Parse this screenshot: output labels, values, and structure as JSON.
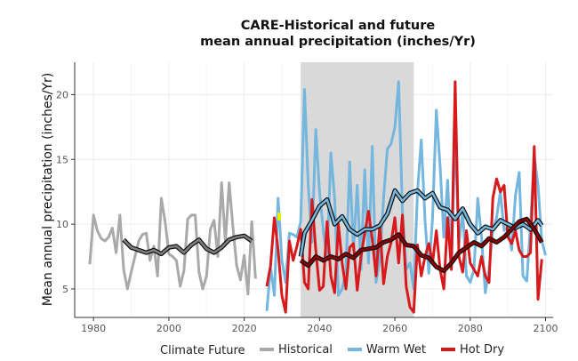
{
  "chart_data": {
    "type": "line",
    "title": "CARE-Historical and future",
    "subtitle": "mean annual precipitation (inches/Yr)",
    "xlabel": "",
    "ylabel": "Mean annual precipitation (inches/Yr)",
    "xlim": [
      1975,
      2102
    ],
    "ylim": [
      2.8,
      22.5
    ],
    "xticks": [
      1980,
      2000,
      2020,
      2040,
      2060,
      2080,
      2100
    ],
    "yticks": [
      5,
      10,
      15,
      20
    ],
    "grid": true,
    "shaded_period": [
      2035,
      2065
    ],
    "legend": {
      "title": "Climate Future",
      "placement": "bottom"
    },
    "series": [
      {
        "name": "Historical",
        "color": "#a9a9a9",
        "ma_color": "#808080",
        "x_start": 1979,
        "values": [
          6.9,
          10.7,
          9.5,
          8.9,
          8.7,
          9.0,
          9.7,
          7.8,
          10.7,
          6.5,
          5.0,
          6.3,
          7.5,
          8.7,
          9.2,
          9.3,
          7.2,
          8.3,
          6.0,
          12.0,
          10.2,
          7.7,
          7.5,
          7.2,
          5.2,
          6.4,
          10.4,
          10.7,
          10.7,
          6.3,
          5.0,
          6.0,
          9.6,
          10.3,
          7.5,
          13.2,
          8.6,
          13.2,
          9.8,
          6.8,
          5.7,
          7.6,
          4.6,
          10.2,
          5.8
        ],
        "moving_average": [
          [
            1988,
            8.8
          ],
          [
            1990,
            8.2
          ],
          [
            1992,
            8.0
          ],
          [
            1994,
            7.8
          ],
          [
            1996,
            8.0
          ],
          [
            1998,
            7.7
          ],
          [
            2000,
            8.2
          ],
          [
            2002,
            8.3
          ],
          [
            2004,
            7.8
          ],
          [
            2006,
            8.4
          ],
          [
            2008,
            8.8
          ],
          [
            2010,
            8.1
          ],
          [
            2012,
            7.8
          ],
          [
            2014,
            8.2
          ],
          [
            2016,
            8.8
          ],
          [
            2018,
            9.0
          ],
          [
            2020,
            9.1
          ],
          [
            2022,
            8.7
          ]
        ]
      },
      {
        "name": "Warm Wet",
        "color": "#74b6de",
        "ma_color": "#74b6de",
        "x_start": 2026,
        "values": [
          3.3,
          6.7,
          4.5,
          12.0,
          7.2,
          5.5,
          9.3,
          9.2,
          9.0,
          10.2,
          20.4,
          13.0,
          8.6,
          17.3,
          12.5,
          9.5,
          7.3,
          15.5,
          12.0,
          4.5,
          5.0,
          6.3,
          14.8,
          8.0,
          13.0,
          6.5,
          14.2,
          7.0,
          16.0,
          5.5,
          7.2,
          12.0,
          15.8,
          16.2,
          17.5,
          21.0,
          11.0,
          6.5,
          7.0,
          5.0,
          12.5,
          16.5,
          10.3,
          6.2,
          10.5,
          18.8,
          14.5,
          9.0,
          13.4,
          6.8,
          17.0,
          8.5,
          11.0,
          6.0,
          5.5,
          6.5,
          12.0,
          9.0,
          4.7,
          6.5,
          9.5,
          10.5,
          12.5,
          9.5,
          9.8,
          8.0,
          12.2,
          14.0,
          6.0,
          5.6,
          10.0,
          15.3,
          13.0,
          8.7,
          7.6
        ],
        "moving_average": [
          [
            2035,
            7.5
          ],
          [
            2036,
            9.3
          ],
          [
            2038,
            10.3
          ],
          [
            2040,
            11.4
          ],
          [
            2042,
            11.9
          ],
          [
            2044,
            10.0
          ],
          [
            2046,
            10.6
          ],
          [
            2048,
            9.6
          ],
          [
            2050,
            9.2
          ],
          [
            2052,
            9.6
          ],
          [
            2054,
            9.6
          ],
          [
            2056,
            9.9
          ],
          [
            2058,
            10.8
          ],
          [
            2060,
            12.6
          ],
          [
            2062,
            11.8
          ],
          [
            2064,
            12.4
          ],
          [
            2066,
            12.6
          ],
          [
            2068,
            12.0
          ],
          [
            2070,
            12.4
          ],
          [
            2072,
            11.3
          ],
          [
            2074,
            11.1
          ],
          [
            2076,
            10.4
          ],
          [
            2078,
            11.2
          ],
          [
            2080,
            10.0
          ],
          [
            2082,
            9.3
          ],
          [
            2084,
            9.8
          ],
          [
            2086,
            9.6
          ],
          [
            2088,
            10.3
          ],
          [
            2090,
            10.0
          ],
          [
            2092,
            9.7
          ],
          [
            2094,
            10.0
          ],
          [
            2096,
            9.6
          ],
          [
            2098,
            10.3
          ],
          [
            2099,
            9.9
          ]
        ]
      },
      {
        "name": "Hot Dry",
        "color": "#d7191c",
        "ma_color": "#8b0000",
        "x_start": 2026,
        "values": [
          5.2,
          6.8,
          10.5,
          8.0,
          4.5,
          3.2,
          8.7,
          7.2,
          8.3,
          9.6,
          5.5,
          5.0,
          11.9,
          8.0,
          4.9,
          5.2,
          10.2,
          6.0,
          4.7,
          10.0,
          7.0,
          5.0,
          8.2,
          8.5,
          4.9,
          7.5,
          9.3,
          11.0,
          8.8,
          6.0,
          10.0,
          5.4,
          7.5,
          8.6,
          10.5,
          7.0,
          10.7,
          5.2,
          3.6,
          3.2,
          8.4,
          6.0,
          7.5,
          8.5,
          7.0,
          9.5,
          6.5,
          5.0,
          10.5,
          6.5,
          21.0,
          7.5,
          6.3,
          9.5,
          7.0,
          6.5,
          6.0,
          7.5,
          6.0,
          5.5,
          12.0,
          13.5,
          12.5,
          13.0,
          9.0,
          8.5,
          9.5,
          8.0,
          7.5,
          7.5,
          7.8,
          16.0,
          4.2,
          7.3
        ],
        "moving_average": [
          [
            2035,
            7.2
          ],
          [
            2037,
            6.8
          ],
          [
            2039,
            7.5
          ],
          [
            2041,
            7.2
          ],
          [
            2043,
            7.5
          ],
          [
            2045,
            7.3
          ],
          [
            2047,
            7.7
          ],
          [
            2049,
            7.4
          ],
          [
            2051,
            8.0
          ],
          [
            2053,
            8.1
          ],
          [
            2055,
            8.2
          ],
          [
            2057,
            8.6
          ],
          [
            2059,
            8.8
          ],
          [
            2061,
            9.2
          ],
          [
            2063,
            8.4
          ],
          [
            2065,
            8.3
          ],
          [
            2067,
            7.6
          ],
          [
            2069,
            7.4
          ],
          [
            2071,
            6.7
          ],
          [
            2073,
            6.4
          ],
          [
            2075,
            7.0
          ],
          [
            2077,
            7.8
          ],
          [
            2079,
            8.2
          ],
          [
            2081,
            8.6
          ],
          [
            2083,
            8.3
          ],
          [
            2085,
            8.9
          ],
          [
            2087,
            8.6
          ],
          [
            2089,
            9.0
          ],
          [
            2091,
            9.6
          ],
          [
            2093,
            10.2
          ],
          [
            2095,
            10.4
          ],
          [
            2097,
            9.6
          ],
          [
            2099,
            8.6
          ]
        ]
      }
    ]
  }
}
